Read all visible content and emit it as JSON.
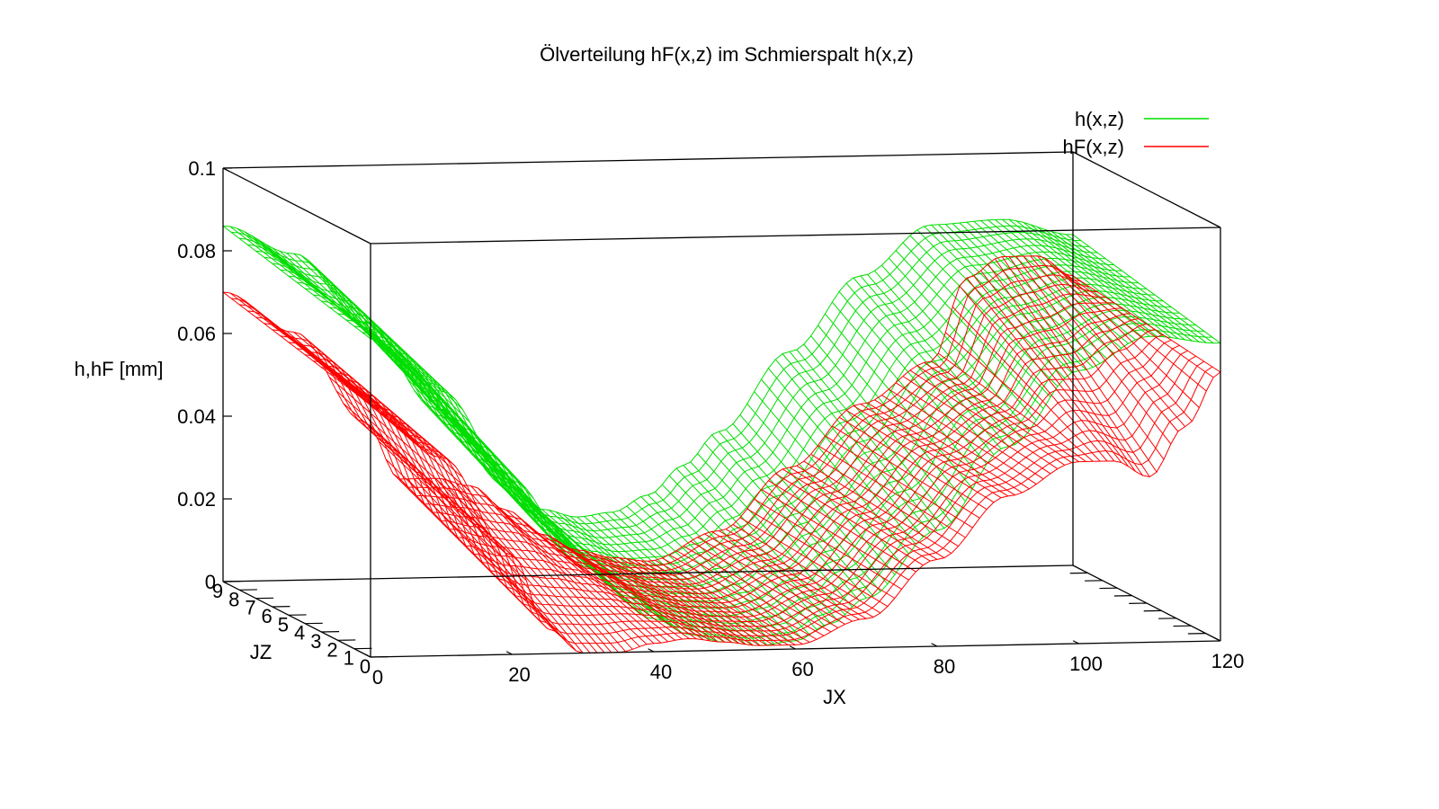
{
  "chart_data": {
    "type": "surface3d",
    "title": "Ölverteilung hF(x,z) im Schmierspalt h(x,z)",
    "xlabel": "JX",
    "zlabel": "JZ",
    "ylabel": "h,hF [mm]",
    "x_range": [
      0,
      120
    ],
    "z_range": [
      0,
      9
    ],
    "y_range": [
      0,
      0.1
    ],
    "x_ticks": [
      "0",
      "20",
      "40",
      "60",
      "80",
      "100",
      "120"
    ],
    "z_ticks": [
      "0",
      "1",
      "2",
      "3",
      "4",
      "5",
      "6",
      "7",
      "8",
      "9"
    ],
    "y_ticks": [
      "0",
      "0.02",
      "0.04",
      "0.06",
      "0.08",
      "0.1"
    ],
    "legend_position": "top-right",
    "series": [
      {
        "name": "h(x,z)",
        "color": "#00dd00",
        "x": [
          0,
          10,
          20,
          30,
          40,
          45,
          50,
          55,
          60,
          65,
          70,
          80,
          90,
          100,
          110,
          120
        ],
        "values_front": [
          0.077,
          0.064,
          0.042,
          0.021,
          0.008,
          0.004,
          0.002,
          0.001,
          0.002,
          0.006,
          0.012,
          0.028,
          0.048,
          0.066,
          0.074,
          0.072
        ],
        "values_back": [
          0.086,
          0.079,
          0.062,
          0.041,
          0.022,
          0.016,
          0.014,
          0.015,
          0.019,
          0.026,
          0.034,
          0.053,
          0.071,
          0.083,
          0.084,
          0.08
        ]
      },
      {
        "name": "hF(x,z)",
        "color": "#ff0000",
        "x": [
          0,
          10,
          20,
          25,
          30,
          35,
          40,
          45,
          50,
          55,
          60,
          70,
          80,
          90,
          100,
          105,
          110,
          115,
          120
        ],
        "values_front": [
          0.061,
          0.048,
          0.024,
          0.006,
          0.0,
          0.0,
          0.002,
          0.003,
          0.002,
          0.001,
          0.001,
          0.007,
          0.021,
          0.036,
          0.044,
          0.044,
          0.04,
          0.052,
          0.065
        ],
        "values_back": [
          0.07,
          0.06,
          0.038,
          0.024,
          0.024,
          0.022,
          0.016,
          0.01,
          0.006,
          0.004,
          0.003,
          0.01,
          0.025,
          0.04,
          0.05,
          0.07,
          0.075,
          0.075,
          0.07
        ]
      }
    ]
  }
}
